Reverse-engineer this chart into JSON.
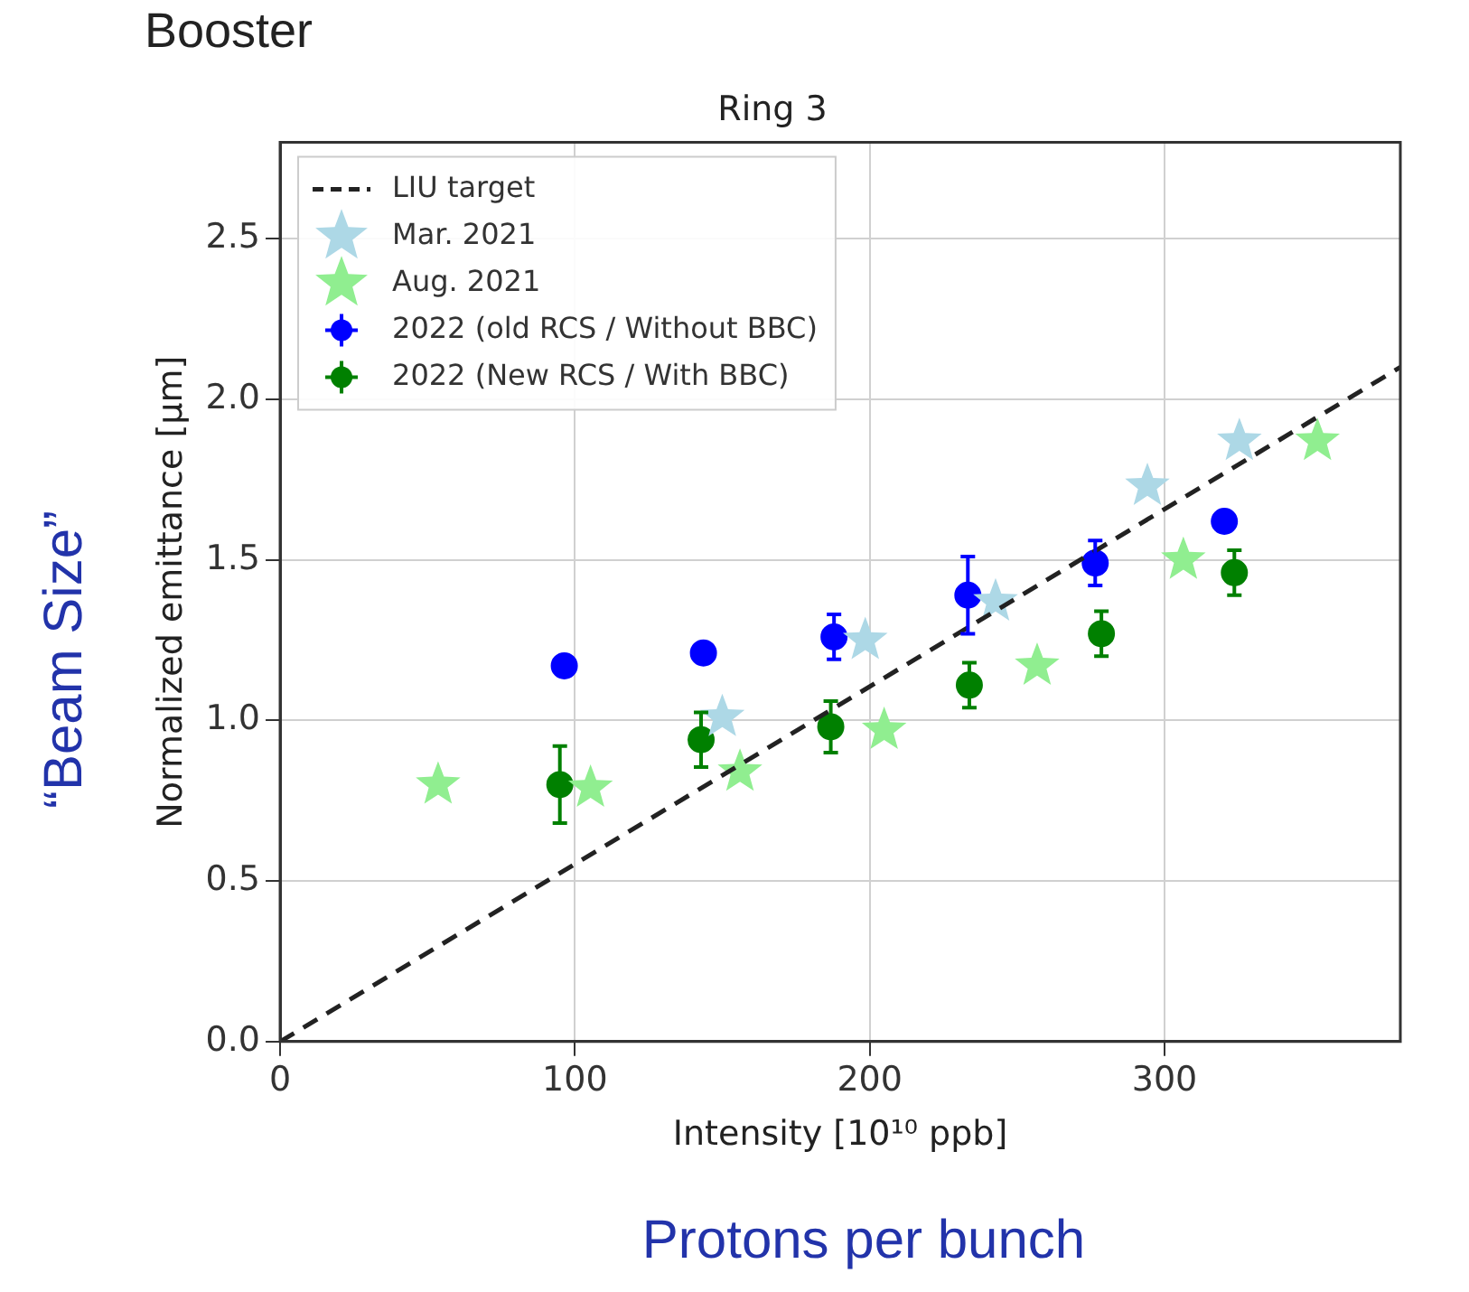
{
  "chart_data": {
    "type": "scatter",
    "title": "Ring 3",
    "xlabel": "Intensity [10¹⁰ ppb]",
    "ylabel": "Normalized emittance [μm]",
    "annotations": [
      "Booster",
      "“Beam Size”",
      "Protons per bunch"
    ],
    "xlim": [
      0,
      380
    ],
    "xticks": [
      0,
      100,
      200,
      300
    ],
    "ylim": [
      0,
      2.8
    ],
    "yticks": [
      {
        "value": 0,
        "label": "0.0"
      },
      0.5,
      {
        "value": 1,
        "label": "1.0"
      },
      1.5,
      {
        "value": 2,
        "label": "2.0"
      },
      2.5
    ],
    "grid": true,
    "legend": "top left",
    "series": [
      {
        "name": "LIU target",
        "type": "line",
        "color": "#222222",
        "line_style": "dashed",
        "marker": "none",
        "x": [
          0,
          380
        ],
        "values": [
          0,
          2.1
        ]
      },
      {
        "name": "Mar. 2021",
        "color": "#add8e6",
        "marker": "star",
        "x": [
          150,
          198.5,
          242.7,
          294.2,
          325.4
        ],
        "values": [
          1.01,
          1.25,
          1.37,
          1.73,
          1.87
        ]
      },
      {
        "name": "Aug. 2021",
        "color": "#90ee90",
        "marker": "star",
        "x": [
          53.6,
          105.3,
          156,
          204.9,
          256.8,
          306.4,
          351.9
        ],
        "values": [
          0.8,
          0.79,
          0.84,
          0.97,
          1.17,
          1.5,
          1.87
        ]
      },
      {
        "name": "2022 (old RCS / Without BBC)",
        "color": "#0000ff",
        "marker": "circle",
        "x": [
          96.4,
          143.6,
          187.9,
          233.3,
          276.5,
          320.3
        ],
        "values": [
          1.17,
          1.21,
          1.26,
          1.39,
          1.49,
          1.62
        ],
        "errors": [
          null,
          null,
          0.07,
          0.12,
          0.07,
          null
        ]
      },
      {
        "name": "2022 (New RCS / With BBC)",
        "color": "#008000",
        "marker": "circle",
        "x": [
          94.9,
          142.8,
          186.8,
          233.8,
          278.6,
          323.7
        ],
        "values": [
          0.8,
          0.94,
          0.98,
          1.11,
          1.27,
          1.46
        ],
        "errors": [
          0.12,
          0.085,
          0.08,
          0.07,
          0.07,
          0.07
        ]
      }
    ]
  }
}
